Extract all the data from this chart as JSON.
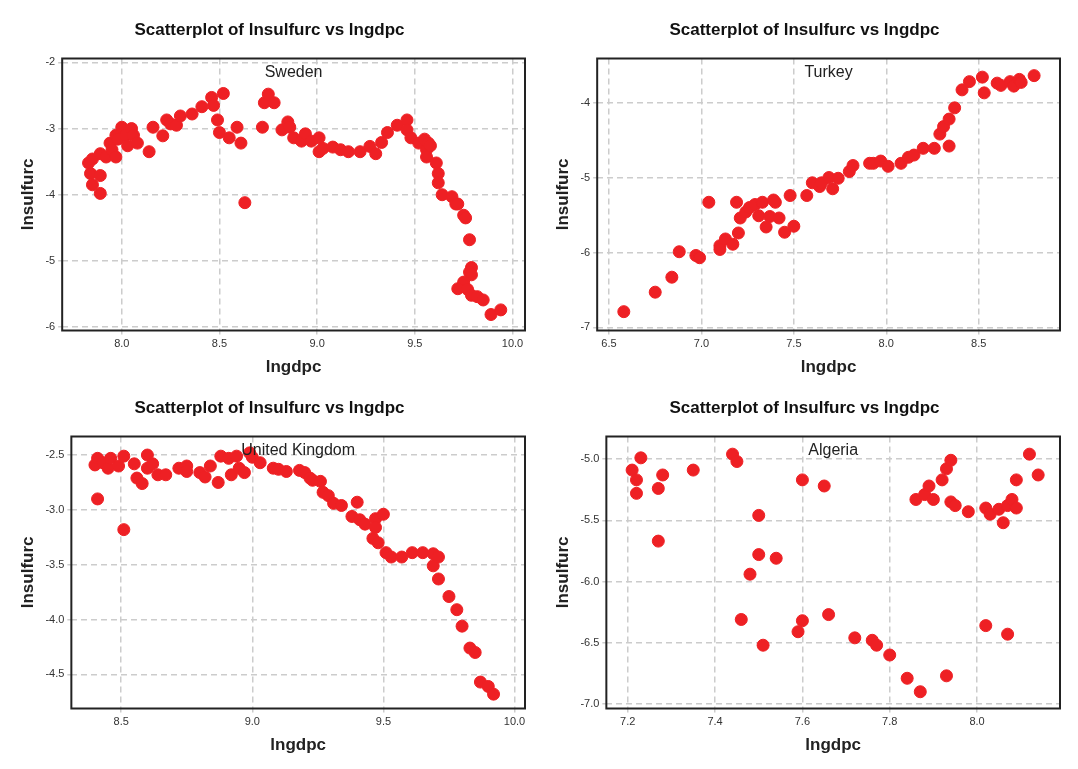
{
  "chart_data": [
    {
      "type": "scatter",
      "title": "Scatterplot of lnsulfurc vs lngdpc",
      "xlabel": "lngdpc",
      "ylabel": "lnsulfurc",
      "annotations": [
        "Sweden"
      ],
      "color": "#ee2024",
      "marker": "circle",
      "grid": true,
      "xlim": [
        7.695,
        10.064
      ],
      "ylim": [
        -6.05,
        -1.94
      ],
      "xticks": [
        {
          "value": 8,
          "label": "8.0"
        },
        8.5,
        {
          "value": 9,
          "label": "9.0"
        },
        9.5,
        {
          "value": 10,
          "label": "10.0"
        }
      ],
      "yticks": [
        -2,
        -3,
        -4,
        -5,
        -6
      ],
      "x": [
        7.83,
        7.84,
        7.85,
        7.85,
        7.89,
        7.89,
        7.89,
        7.92,
        7.94,
        7.95,
        7.97,
        7.97,
        7.98,
        8.0,
        8.02,
        8.03,
        8.05,
        8.06,
        8.08,
        8.14,
        8.16,
        8.21,
        8.23,
        8.25,
        8.28,
        8.3,
        8.36,
        8.41,
        8.46,
        8.47,
        8.52,
        8.49,
        8.5,
        8.55,
        8.59,
        8.61,
        8.63,
        8.72,
        8.73,
        8.75,
        8.78,
        8.82,
        8.85,
        8.86,
        8.88,
        8.92,
        8.94,
        8.97,
        9.01,
        9.01,
        9.03,
        9.08,
        9.12,
        9.16,
        9.22,
        9.27,
        9.3,
        9.33,
        9.36,
        9.41,
        9.46,
        9.46,
        9.48,
        9.52,
        9.55,
        9.56,
        9.57,
        9.56,
        9.58,
        9.61,
        9.62,
        9.62,
        9.64,
        9.69,
        9.71,
        9.72,
        9.75,
        9.76,
        9.78,
        9.79,
        9.78,
        9.79,
        9.75,
        9.72,
        9.77,
        9.79,
        9.82,
        9.85,
        9.89,
        9.94
      ],
      "values": [
        -3.52,
        -3.68,
        -3.85,
        -3.46,
        -3.38,
        -3.71,
        -3.98,
        -3.43,
        -3.22,
        -3.32,
        -3.43,
        -3.1,
        -3.16,
        -2.98,
        -3.1,
        -3.26,
        -3.0,
        -3.1,
        -3.22,
        -3.35,
        -2.98,
        -3.11,
        -2.87,
        -2.93,
        -2.95,
        -2.81,
        -2.78,
        -2.67,
        -2.53,
        -2.65,
        -2.47,
        -2.87,
        -3.06,
        -3.14,
        -2.98,
        -3.22,
        -4.12,
        -2.98,
        -2.61,
        -2.48,
        -2.61,
        -3.02,
        -2.9,
        -2.98,
        -3.14,
        -3.19,
        -3.08,
        -3.19,
        -3.14,
        -3.35,
        -3.3,
        -3.28,
        -3.32,
        -3.35,
        -3.35,
        -3.27,
        -3.38,
        -3.21,
        -3.06,
        -2.95,
        -2.87,
        -3.02,
        -3.14,
        -3.22,
        -3.16,
        -3.32,
        -3.22,
        -3.43,
        -3.26,
        -3.52,
        -3.68,
        -3.82,
        -4.0,
        -4.03,
        -4.14,
        -4.14,
        -4.31,
        -4.35,
        -4.68,
        -5.1,
        -5.17,
        -5.21,
        -5.32,
        -5.42,
        -5.43,
        -5.52,
        -5.54,
        -5.59,
        -5.81,
        -5.74
      ]
    },
    {
      "type": "scatter",
      "title": "Scatterplot of lnsulfurc vs lngdpc",
      "xlabel": "lngdpc",
      "ylabel": "lnsulfurc",
      "annotations": [
        "Turkey"
      ],
      "color": "#ee2024",
      "marker": "circle",
      "grid": true,
      "xlim": [
        6.436,
        8.94
      ],
      "ylim": [
        -7.04,
        -3.41
      ],
      "xticks": [
        6.5,
        {
          "value": 7,
          "label": "7.0"
        },
        7.5,
        {
          "value": 8,
          "label": "8.0"
        },
        8.5
      ],
      "yticks": [
        -4,
        -5,
        -6,
        -7
      ],
      "x": [
        6.58,
        6.75,
        6.84,
        6.88,
        6.97,
        6.99,
        7.04,
        7.1,
        7.1,
        7.13,
        7.17,
        7.19,
        7.2,
        7.21,
        7.24,
        7.26,
        7.29,
        7.33,
        7.31,
        7.35,
        7.37,
        7.39,
        7.4,
        7.42,
        7.45,
        7.48,
        7.5,
        7.57,
        7.6,
        7.64,
        7.65,
        7.69,
        7.71,
        7.74,
        7.8,
        7.82,
        7.91,
        7.93,
        7.97,
        8.01,
        8.08,
        8.12,
        8.15,
        8.2,
        8.26,
        8.29,
        8.31,
        8.34,
        8.34,
        8.37,
        8.41,
        8.45,
        8.52,
        8.53,
        8.6,
        8.62,
        8.67,
        8.69,
        8.72,
        8.73,
        8.8
      ],
      "values": [
        -6.79,
        -6.53,
        -6.33,
        -5.99,
        -6.04,
        -6.07,
        -5.33,
        -5.91,
        -5.96,
        -5.82,
        -5.89,
        -5.33,
        -5.74,
        -5.54,
        -5.46,
        -5.4,
        -5.36,
        -5.33,
        -5.51,
        -5.66,
        -5.52,
        -5.3,
        -5.33,
        -5.54,
        -5.73,
        -5.24,
        -5.65,
        -5.24,
        -5.07,
        -5.12,
        -5.07,
        -5.0,
        -5.15,
        -5.01,
        -4.92,
        -4.84,
        -4.81,
        -4.81,
        -4.78,
        -4.85,
        -4.81,
        -4.73,
        -4.7,
        -4.61,
        -4.61,
        -4.42,
        -4.32,
        -4.58,
        -4.22,
        -4.07,
        -3.83,
        -3.72,
        -3.66,
        -3.87,
        -3.74,
        -3.77,
        -3.72,
        -3.78,
        -3.69,
        -3.73,
        -3.64
      ]
    },
    {
      "type": "scatter",
      "title": "Scatterplot of lnsulfurc vs lngdpc",
      "xlabel": "lngdpc",
      "ylabel": "lnsulfurc",
      "annotations": [
        "United Kingdom"
      ],
      "color": "#ee2024",
      "marker": "circle",
      "grid": true,
      "xlim": [
        8.31,
        10.04
      ],
      "ylim": [
        -4.81,
        -2.33
      ],
      "xticks": [
        8.5,
        {
          "value": 9,
          "label": "9.0"
        },
        9.5,
        {
          "value": 10,
          "label": "10.0"
        }
      ],
      "yticks": [
        -2.5,
        {
          "value": -3,
          "label": "-3.0"
        },
        -3.5,
        {
          "value": -4,
          "label": "-4.0"
        },
        -4.5
      ],
      "x": [
        8.4,
        8.41,
        8.41,
        8.43,
        8.45,
        8.46,
        8.49,
        8.51,
        8.51,
        8.55,
        8.56,
        8.58,
        8.6,
        8.6,
        8.62,
        8.64,
        8.67,
        8.72,
        8.75,
        8.75,
        8.8,
        8.82,
        8.84,
        8.87,
        8.88,
        8.91,
        8.92,
        8.94,
        8.95,
        8.97,
        8.99,
        9.0,
        9.03,
        9.08,
        9.1,
        9.13,
        9.18,
        9.2,
        9.22,
        9.23,
        9.26,
        9.27,
        9.29,
        9.31,
        9.34,
        9.38,
        9.4,
        9.41,
        9.43,
        9.46,
        9.47,
        9.47,
        9.48,
        9.5,
        9.51,
        9.53,
        9.57,
        9.61,
        9.65,
        9.69,
        9.69,
        9.71,
        9.71,
        9.75,
        9.78,
        9.8,
        9.83,
        9.85,
        9.87,
        9.9,
        9.92
      ],
      "values": [
        -2.59,
        -2.53,
        -2.9,
        -2.57,
        -2.62,
        -2.53,
        -2.6,
        -2.51,
        -3.18,
        -2.58,
        -2.71,
        -2.76,
        -2.5,
        -2.62,
        -2.58,
        -2.68,
        -2.68,
        -2.62,
        -2.6,
        -2.65,
        -2.66,
        -2.7,
        -2.6,
        -2.75,
        -2.51,
        -2.53,
        -2.68,
        -2.51,
        -2.62,
        -2.66,
        -2.48,
        -2.52,
        -2.57,
        -2.62,
        -2.63,
        -2.65,
        -2.64,
        -2.66,
        -2.71,
        -2.73,
        -2.74,
        -2.84,
        -2.87,
        -2.94,
        -2.96,
        -3.06,
        -2.93,
        -3.09,
        -3.13,
        -3.26,
        -3.08,
        -3.16,
        -3.3,
        -3.04,
        -3.39,
        -3.43,
        -3.43,
        -3.39,
        -3.39,
        -3.4,
        -3.51,
        -3.43,
        -3.63,
        -3.79,
        -3.91,
        -4.06,
        -4.26,
        -4.3,
        -4.57,
        -4.61,
        -4.68
      ]
    },
    {
      "type": "scatter",
      "title": "Scatterplot of lnsulfurc vs lngdpc",
      "xlabel": "lngdpc",
      "ylabel": "lnsulfurc",
      "annotations": [
        "Algeria"
      ],
      "color": "#ee2024",
      "marker": "circle",
      "grid": true,
      "xlim": [
        7.151,
        8.19
      ],
      "ylim": [
        -7.036,
        -4.815
      ],
      "xticks": [
        7.2,
        7.4,
        7.6,
        7.8,
        {
          "value": 8,
          "label": "8.0"
        }
      ],
      "yticks": [
        {
          "value": -5,
          "label": "-5.0"
        },
        -5.5,
        {
          "value": -6,
          "label": "-6.0"
        },
        -6.5,
        {
          "value": -7,
          "label": "-7.0"
        }
      ],
      "x": [
        7.21,
        7.23,
        7.22,
        7.22,
        7.27,
        7.27,
        7.28,
        7.35,
        7.44,
        7.45,
        7.46,
        7.48,
        7.5,
        7.5,
        7.51,
        7.54,
        7.59,
        7.6,
        7.6,
        7.65,
        7.66,
        7.72,
        7.76,
        7.77,
        7.8,
        7.84,
        7.87,
        7.86,
        7.88,
        7.89,
        7.9,
        7.92,
        7.93,
        7.93,
        7.94,
        7.94,
        7.95,
        7.98,
        8.02,
        8.02,
        8.03,
        8.05,
        8.06,
        8.07,
        8.07,
        8.08,
        8.09,
        8.09,
        8.12,
        8.14
      ],
      "values": [
        -5.09,
        -4.99,
        -5.17,
        -5.28,
        -5.24,
        -5.67,
        -5.13,
        -5.09,
        -4.96,
        -5.02,
        -6.31,
        -5.94,
        -5.46,
        -5.78,
        -6.52,
        -5.81,
        -6.41,
        -5.17,
        -6.32,
        -5.22,
        -6.27,
        -6.46,
        -6.48,
        -6.52,
        -6.6,
        -6.79,
        -6.9,
        -5.33,
        -5.29,
        -5.22,
        -5.33,
        -5.17,
        -6.77,
        -5.08,
        -5.01,
        -5.35,
        -5.38,
        -5.43,
        -6.36,
        -5.4,
        -5.45,
        -5.41,
        -5.52,
        -5.38,
        -6.43,
        -5.33,
        -5.4,
        -5.17,
        -4.96,
        -5.13
      ]
    }
  ]
}
